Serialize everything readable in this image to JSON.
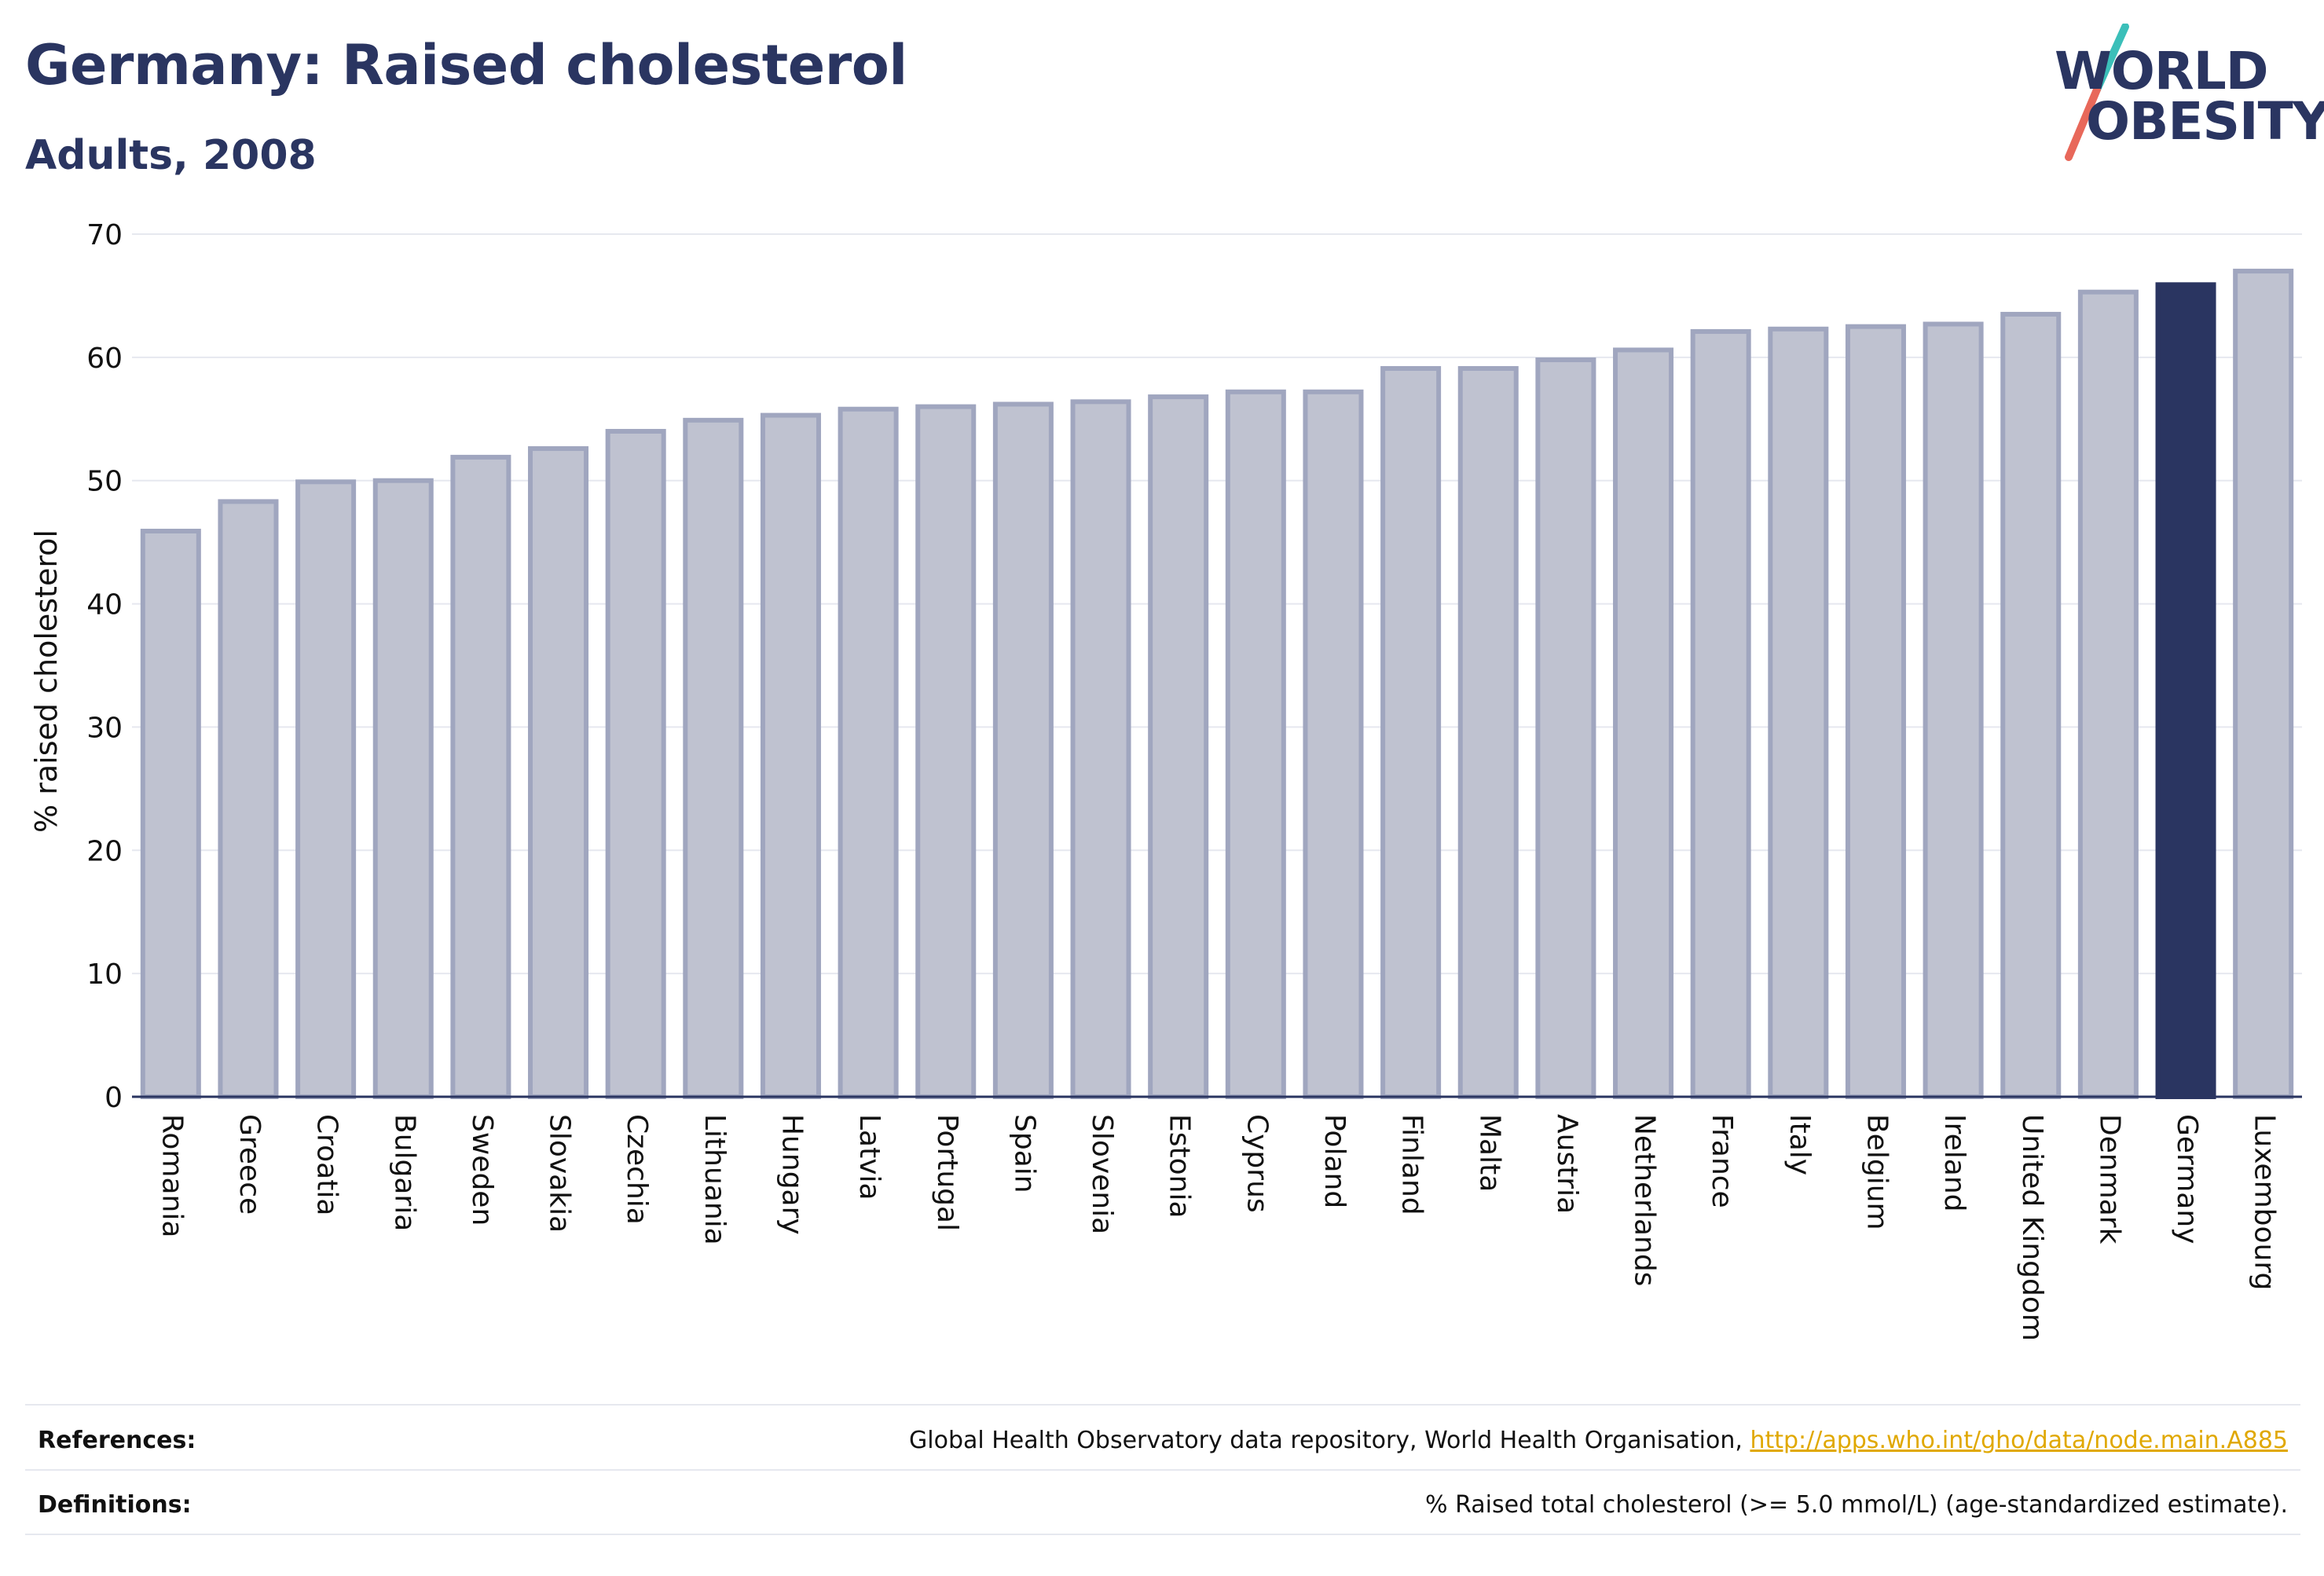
{
  "header": {
    "title": "Germany: Raised cholesterol",
    "subtitle": "Adults, 2008"
  },
  "logo": {
    "line1": "WORLD",
    "line2": "OBESITY",
    "colors": {
      "text": "#2a3561",
      "slash_top": "#3bbfb9",
      "slash_bottom": "#e8685a"
    }
  },
  "chart_data": {
    "type": "bar",
    "ylabel": "% raised cholesterol",
    "xlabel": "",
    "ylim": [
      0,
      70
    ],
    "yticks": [
      0,
      10,
      20,
      30,
      40,
      50,
      60,
      70
    ],
    "grid": true,
    "categories": [
      "Romania",
      "Greece",
      "Croatia",
      "Bulgaria",
      "Sweden",
      "Slovakia",
      "Czechia",
      "Lithuania",
      "Hungary",
      "Latvia",
      "Portugal",
      "Spain",
      "Slovenia",
      "Estonia",
      "Cyprus",
      "Poland",
      "Finland",
      "Malta",
      "Austria",
      "Netherlands",
      "France",
      "Italy",
      "Belgium",
      "Ireland",
      "United Kingdom",
      "Denmark",
      "Germany",
      "Luxembourg"
    ],
    "values": [
      45.9,
      48.3,
      49.9,
      50.0,
      51.9,
      52.6,
      54.0,
      54.9,
      55.3,
      55.8,
      56.0,
      56.2,
      56.4,
      56.8,
      57.2,
      57.2,
      59.1,
      59.1,
      59.8,
      60.6,
      62.1,
      62.3,
      62.5,
      62.7,
      63.5,
      65.3,
      65.9,
      67.0
    ],
    "highlight": "Germany",
    "colors": {
      "bar": "#bfc2d0",
      "bar_outline": "#a0a6bf",
      "highlight": "#2a3561",
      "grid": "#e6e8ef",
      "axis": "#2a3561"
    }
  },
  "footer": {
    "references_label": "References:",
    "references_text": "Global Health Observatory data repository, World Health Organisation, ",
    "references_link": "http://apps.who.int/gho/data/node.main.A885",
    "definitions_label": "Definitions:",
    "definitions_text": "% Raised total cholesterol (>= 5.0 mmol/L) (age-standardized estimate)."
  }
}
